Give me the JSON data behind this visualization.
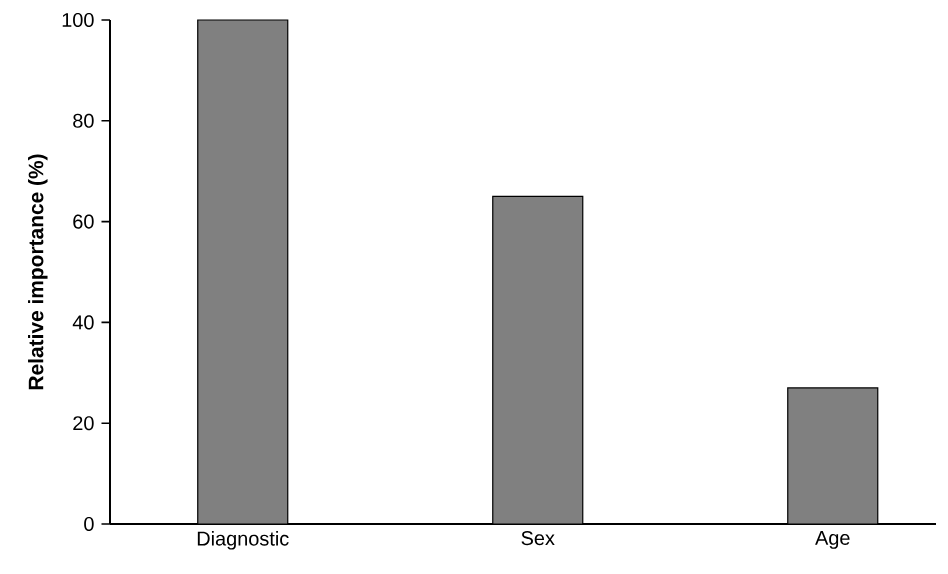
{
  "chart_data": {
    "type": "bar",
    "ylabel": "Relative importance (%)",
    "categories": [
      "Diagnostic",
      "Sex",
      "Age"
    ],
    "values": [
      100,
      65,
      27
    ],
    "color": "#808080",
    "ylim": [
      0,
      100
    ],
    "yticks": [
      0,
      20,
      40,
      60,
      80,
      100
    ]
  }
}
